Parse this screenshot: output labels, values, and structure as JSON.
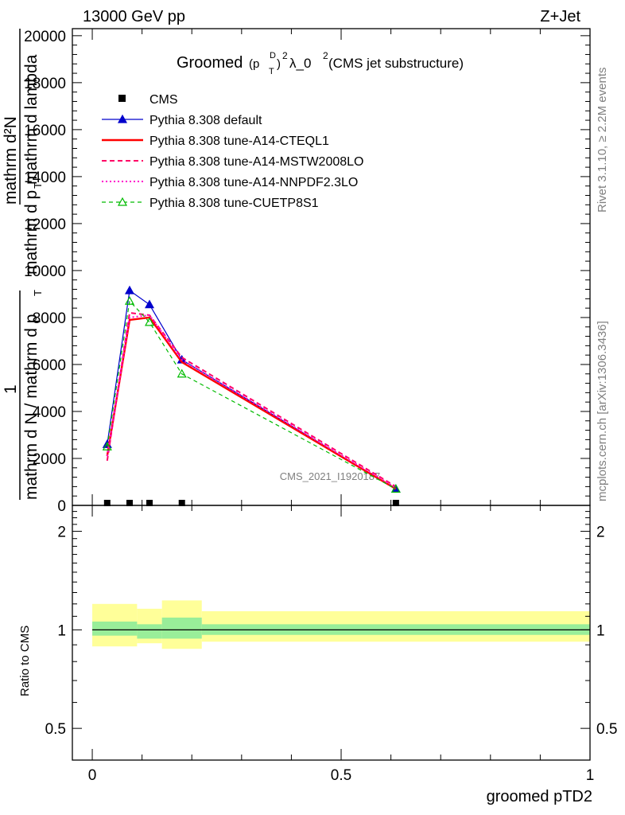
{
  "header": {
    "energy": "13000 GeV pp",
    "process": "Z+Jet",
    "plot_title": "Groomed",
    "title_mid": "(p",
    "title_sup_d": "D",
    "title_sub_t": "T",
    "title_end": ")",
    "title_sup_2": "2",
    "title_lambda": " λ_0",
    "title_sup_2b": "2",
    "title_paren": " (CMS jet substructure)",
    "watermark": "CMS_2021_I1920187"
  },
  "side_text": {
    "rivet": "Rivet 3.1.10, ≥ 2.2M events",
    "mcplots": "mcplots.cern.ch [arXiv:1306.3436]"
  },
  "axis_labels": {
    "ylabel_top": "mathrm d²N",
    "ylabel_one": "1",
    "ylabel_den1": "mathrm d p",
    "ylabel_den1_sub": "T",
    "ylabel_den2": " mathrm d lambda",
    "ylabel_frac": "mathrm d N / mathrm d p",
    "ylabel_frac_sub": "T",
    "ratio_ylabel": "Ratio to CMS",
    "xlabel": "groomed pTD2"
  },
  "chart_data": {
    "type": "line",
    "x_range": [
      -0.04,
      1.0
    ],
    "main": {
      "ylim": [
        0,
        20300
      ],
      "yticks": [
        "0",
        "2000",
        "4000",
        "6000",
        "8000",
        "10000",
        "12000",
        "14000",
        "16000",
        "18000",
        "20000"
      ],
      "ytick_values": [
        0,
        2000,
        4000,
        6000,
        8000,
        10000,
        12000,
        14000,
        16000,
        18000,
        20000
      ]
    },
    "ratio": {
      "ylim": [
        0.4,
        2.4
      ],
      "yticks": [
        "0.5",
        "1",
        "2"
      ],
      "ytick_values": [
        0.5,
        1,
        2
      ],
      "bands": [
        {
          "x0": 0.0,
          "x1": 0.09,
          "inner": [
            0.96,
            1.06
          ],
          "outer": [
            0.89,
            1.2
          ]
        },
        {
          "x0": 0.09,
          "x1": 0.14,
          "inner": [
            0.94,
            1.04
          ],
          "outer": [
            0.91,
            1.16
          ]
        },
        {
          "x0": 0.14,
          "x1": 0.22,
          "inner": [
            0.94,
            1.09
          ],
          "outer": [
            0.875,
            1.23
          ]
        },
        {
          "x0": 0.22,
          "x1": 1.0,
          "inner": [
            0.965,
            1.04
          ],
          "outer": [
            0.92,
            1.14
          ]
        }
      ]
    },
    "xticks": [
      "0",
      "0.5",
      "1"
    ],
    "xtick_values": [
      0,
      0.5,
      1
    ],
    "series": [
      {
        "name": "CMS",
        "color": "#000000",
        "style": "data",
        "x": [
          0.03,
          0.075,
          0.115,
          0.18,
          0.61
        ],
        "y": [
          0,
          0,
          0,
          0,
          0
        ]
      },
      {
        "name": "Pythia 8.308 default",
        "color": "#0000cc",
        "style": "solid-thin",
        "marker": "triangle-filled",
        "x": [
          0.03,
          0.075,
          0.115,
          0.18,
          0.61
        ],
        "y": [
          2600,
          9150,
          8550,
          6200,
          700
        ]
      },
      {
        "name": "Pythia 8.308 tune-A14-CTEQL1",
        "color": "#ff0000",
        "style": "solid-thick",
        "marker": "none",
        "x": [
          0.03,
          0.075,
          0.115,
          0.18,
          0.61
        ],
        "y": [
          2100,
          7900,
          8000,
          6100,
          700
        ]
      },
      {
        "name": "Pythia 8.308 tune-A14-MSTW2008LO",
        "color": "#ff0066",
        "style": "dashed",
        "marker": "none",
        "x": [
          0.03,
          0.075,
          0.115,
          0.18,
          0.61
        ],
        "y": [
          1900,
          8200,
          8100,
          6300,
          800
        ]
      },
      {
        "name": "Pythia 8.308 tune-A14-NNPDF2.3LO",
        "color": "#ff00cc",
        "style": "dotted",
        "marker": "none",
        "x": [
          0.03,
          0.075,
          0.115,
          0.18,
          0.61
        ],
        "y": [
          2100,
          8000,
          8100,
          6200,
          750
        ]
      },
      {
        "name": "Pythia 8.308 tune-CUETP8S1",
        "color": "#00bb00",
        "style": "dashed-thin",
        "marker": "triangle-open",
        "x": [
          0.03,
          0.075,
          0.115,
          0.18,
          0.61
        ],
        "y": [
          2500,
          8700,
          7800,
          5600,
          700
        ]
      }
    ],
    "legend": {
      "placement": "top-left"
    },
    "colors": {
      "band_inner": "#99ee99",
      "band_outer": "#ffff99"
    }
  }
}
